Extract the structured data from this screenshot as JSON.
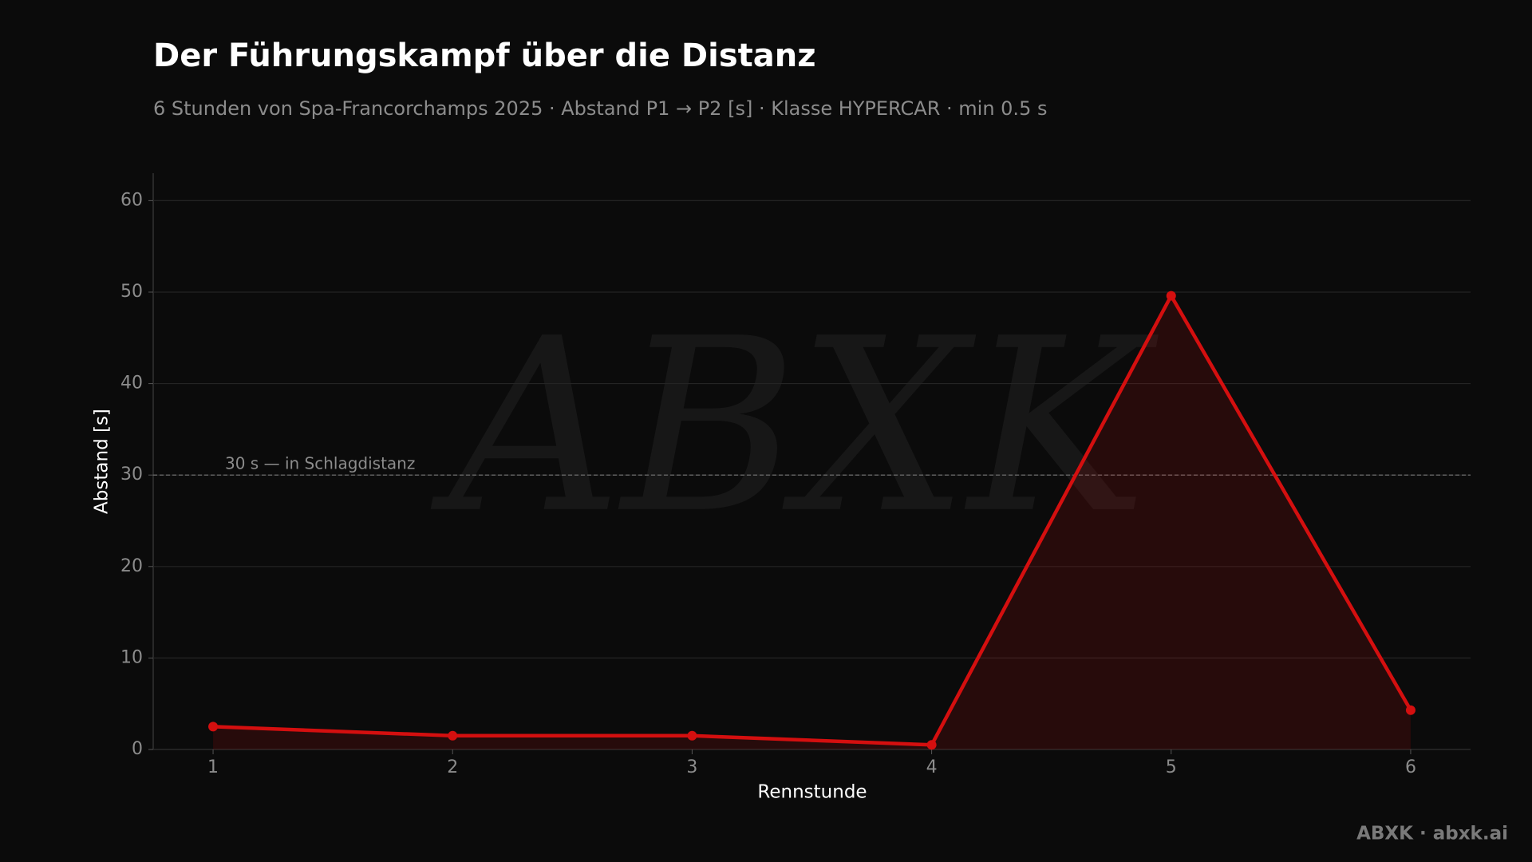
{
  "chart_data": {
    "type": "line",
    "title": "Der Führungskampf über die Distanz",
    "subtitle": "6 Stunden von Spa-Francorchamps 2025 · Abstand P1 → P2 [s] · Klasse HYPERCAR · min 0.5 s",
    "x_label": "Rennstunde",
    "y_label": "Abstand [s]",
    "x": [
      1,
      2,
      3,
      4,
      5,
      6
    ],
    "values": [
      2.5,
      1.5,
      1.5,
      0.5,
      49.6,
      4.3
    ],
    "color": "#d40f0f",
    "xlim": [
      0.75,
      6.25
    ],
    "xticks": [
      1,
      2,
      3,
      4,
      5,
      6
    ],
    "ylim": [
      0,
      63
    ],
    "yticks": [
      0,
      10,
      20,
      30,
      40,
      50,
      60
    ],
    "grid": true,
    "reference_line": {
      "value": 30,
      "label": "30 s — in Schlagdistanz"
    },
    "watermark": "ABXK",
    "footer": "ABXK · abxk.ai"
  }
}
